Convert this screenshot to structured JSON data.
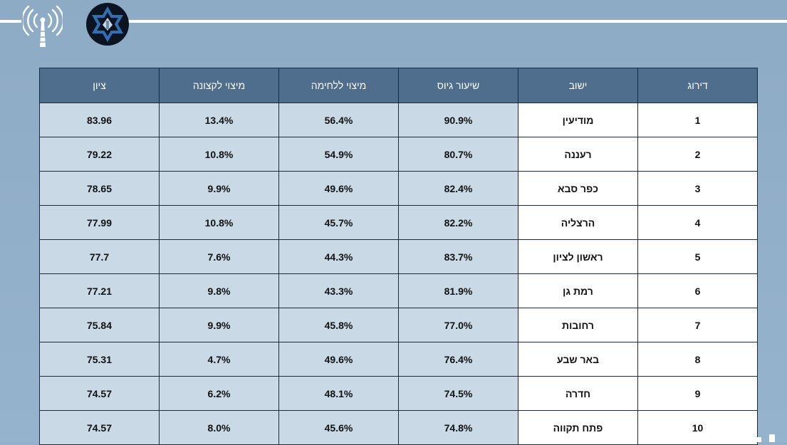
{
  "colors": {
    "background": "#93b0cb",
    "header_bg": "#4f6d8c",
    "cell_bg": "#c9d9e6",
    "rank_bg": "#ffffff",
    "border": "#1d2a3a"
  },
  "logos": {
    "left": "antenna-logo",
    "right": "star-of-david-emblem"
  },
  "table": {
    "headers": [
      "דירוג",
      "ישוב",
      "שיעור גיוס",
      "מיצוי ללחימה",
      "מיצוי לקצונה",
      "ציון"
    ],
    "rows": [
      {
        "rank": "1",
        "city": "מודיעין",
        "recruit": "90.9%",
        "combat": "56.4%",
        "officers": "13.4%",
        "score": "83.96"
      },
      {
        "rank": "2",
        "city": "רעננה",
        "recruit": "80.7%",
        "combat": "54.9%",
        "officers": "10.8%",
        "score": "79.22"
      },
      {
        "rank": "3",
        "city": "כפר סבא",
        "recruit": "82.4%",
        "combat": "49.6%",
        "officers": "9.9%",
        "score": "78.65"
      },
      {
        "rank": "4",
        "city": "הרצליה",
        "recruit": "82.2%",
        "combat": "45.7%",
        "officers": "10.8%",
        "score": "77.99"
      },
      {
        "rank": "5",
        "city": "ראשון לציון",
        "recruit": "83.7%",
        "combat": "44.3%",
        "officers": "7.6%",
        "score": "77.7"
      },
      {
        "rank": "6",
        "city": "רמת גן",
        "recruit": "81.9%",
        "combat": "43.3%",
        "officers": "9.8%",
        "score": "77.21"
      },
      {
        "rank": "7",
        "city": "רחובות",
        "recruit": "77.0%",
        "combat": "45.8%",
        "officers": "9.9%",
        "score": "75.84"
      },
      {
        "rank": "8",
        "city": "באר שבע",
        "recruit": "76.4%",
        "combat": "49.6%",
        "officers": "4.7%",
        "score": "75.31"
      },
      {
        "rank": "9",
        "city": "חדרה",
        "recruit": "74.5%",
        "combat": "48.1%",
        "officers": "6.2%",
        "score": "74.57"
      },
      {
        "rank": "10",
        "city": "פתח תקווה",
        "recruit": "74.8%",
        "combat": "45.6%",
        "officers": "8.0%",
        "score": "74.57"
      }
    ]
  }
}
